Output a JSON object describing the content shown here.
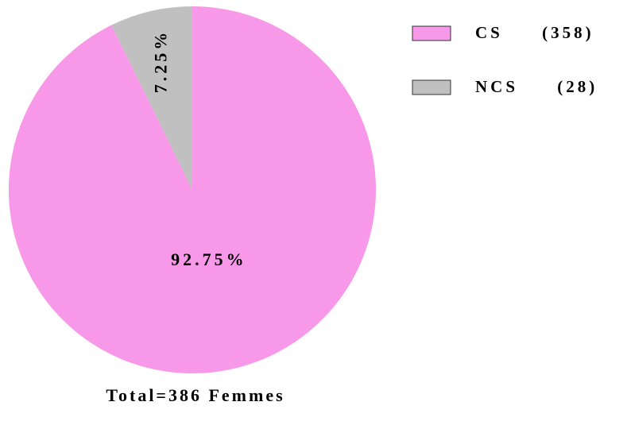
{
  "chart_data": {
    "type": "pie",
    "categories": [
      "CS (358)",
      "NCS (28)"
    ],
    "values": [
      92.75,
      7.25
    ],
    "value_labels": [
      "92.75%",
      "7.25%"
    ],
    "colors": [
      "#f799e8",
      "#c0c0c0"
    ],
    "annotation": "Total=386 Femmes",
    "legend": "top-right"
  }
}
